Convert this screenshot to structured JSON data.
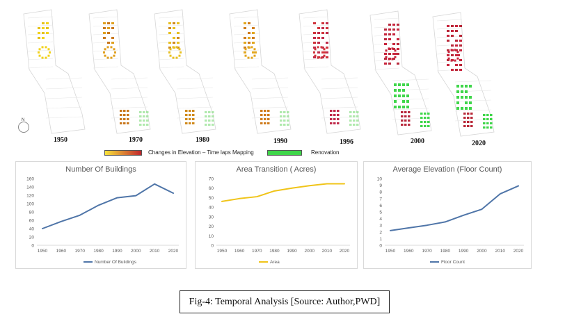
{
  "figure": {
    "map_years": [
      "1950",
      "1970",
      "1980",
      "1990",
      "1996",
      "2000",
      "2020"
    ],
    "north_label": "N",
    "legend": {
      "elevation_label": "Changes in Elevation – Time laps Mapping",
      "renovation_label": "Renovation",
      "elevation_gradient": [
        "#f7e23a",
        "#c0262d"
      ],
      "renovation_color": "#3fd64a"
    },
    "caption": "Fig-4: Temporal Analysis [Source: Author,PWD]"
  },
  "chart_data": [
    {
      "type": "line",
      "title": "Number Of Buildings",
      "categories": [
        "1950",
        "1960",
        "1970",
        "1980",
        "1990",
        "2000",
        "2010",
        "2020"
      ],
      "series": [
        {
          "name": "Number Of Buildings",
          "values": [
            40,
            57,
            72,
            96,
            114,
            119,
            147,
            125
          ],
          "color": "#4f75a8"
        }
      ],
      "ylim": [
        0,
        160
      ],
      "yticks": [
        "0",
        "20",
        "40",
        "60",
        "80",
        "100",
        "120",
        "140",
        "160"
      ],
      "grid": false,
      "legend_position": "bottom"
    },
    {
      "type": "line",
      "title": "Area Transition ( Acres)",
      "categories": [
        "1950",
        "1960",
        "1970",
        "1980",
        "1990",
        "2000",
        "2010",
        "2020"
      ],
      "series": [
        {
          "name": "Area",
          "values": [
            46,
            49,
            51,
            57,
            60,
            62.5,
            64.5,
            64.5
          ],
          "color": "#f0c419"
        }
      ],
      "ylim": [
        0,
        70
      ],
      "yticks": [
        "0",
        "10",
        "20",
        "30",
        "40",
        "50",
        "60",
        "70"
      ],
      "grid": false,
      "legend_position": "bottom"
    },
    {
      "type": "line",
      "title": "Average Elevation (Floor Count)",
      "categories": [
        "1950",
        "1960",
        "1970",
        "1980",
        "1990",
        "2000",
        "2010",
        "2020"
      ],
      "series": [
        {
          "name": "Floor Count",
          "values": [
            2.2,
            2.6,
            3.0,
            3.5,
            4.5,
            5.4,
            7.7,
            8.9
          ],
          "color": "#4f75a8"
        }
      ],
      "ylim": [
        0,
        10
      ],
      "yticks": [
        "0",
        "1",
        "2",
        "3",
        "4",
        "5",
        "6",
        "7",
        "8",
        "9",
        "10"
      ],
      "grid": false,
      "legend_position": "bottom"
    }
  ]
}
